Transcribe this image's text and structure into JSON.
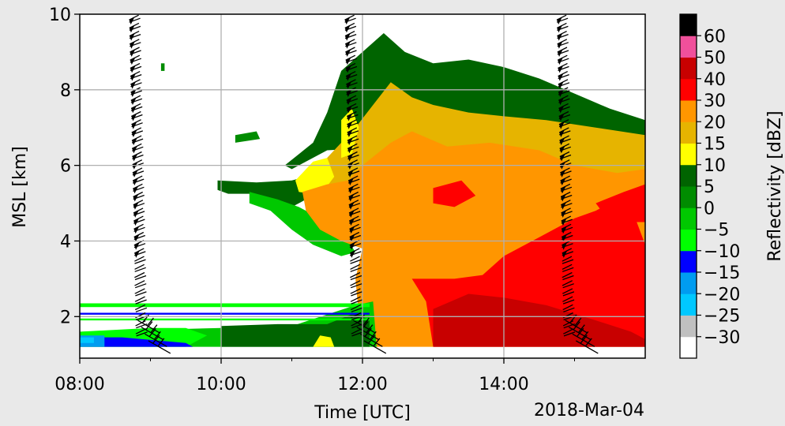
{
  "chart_data": {
    "type": "heatmap",
    "title": "",
    "xlabel": "Time [UTC]",
    "ylabel": "MSL [km]",
    "date_label": "2018-Mar-04",
    "x_ticks": [
      "08:00",
      "10:00",
      "12:00",
      "14:00"
    ],
    "x_tick_hours": [
      8,
      10,
      12,
      14
    ],
    "xlim_hours": [
      8.0,
      16.0
    ],
    "y_ticks": [
      2,
      4,
      6,
      8,
      10
    ],
    "ylim_km": [
      0.9,
      10.0
    ],
    "grid": true,
    "colorbar": {
      "label": "Reflectivity [dBZ]",
      "tick_values": [
        -30,
        -25,
        -20,
        -15,
        -10,
        -5,
        0,
        5,
        10,
        15,
        20,
        30,
        40,
        50,
        60
      ],
      "tick_labels": [
        "−30",
        "−25",
        "−20",
        "−15",
        "−10",
        "−5",
        "0",
        "5",
        "10",
        "15",
        "20",
        "30",
        "40",
        "50",
        "60"
      ],
      "colors": [
        "#ffffff",
        "#c0c0c0",
        "#00c8ff",
        "#009cf0",
        "#0000ff",
        "#00ff00",
        "#00c800",
        "#008c00",
        "#006400",
        "#ffff00",
        "#e6b400",
        "#ff9600",
        "#ff0000",
        "#c80000",
        "#f0509b",
        "#000000"
      ]
    },
    "wind_barb_profiles_hours": [
      8.7,
      11.75,
      14.75
    ],
    "colors": {
      "green_light": "#00ff00",
      "green": "#00c800",
      "green_mid": "#008c00",
      "green_dark": "#006400",
      "yellow": "#ffff00",
      "gold": "#e6b400",
      "orange": "#ff9600",
      "red": "#ff0000",
      "dark_red": "#c80000",
      "blue": "#0000ff",
      "light_blue": "#009cf0",
      "cyan": "#00c8ff"
    },
    "echo_regions": [
      {
        "c": "green_dark",
        "pts": [
          [
            9.95,
            5.6
          ],
          [
            10.5,
            5.55
          ],
          [
            11.0,
            5.6
          ],
          [
            11.3,
            5.75
          ],
          [
            11.2,
            5.1
          ],
          [
            11.0,
            4.9
          ],
          [
            10.7,
            5.1
          ],
          [
            10.4,
            5.25
          ],
          [
            10.1,
            5.25
          ],
          [
            9.95,
            5.35
          ]
        ]
      },
      {
        "c": "green_dark",
        "pts": [
          [
            10.9,
            6.0
          ],
          [
            11.3,
            6.6
          ],
          [
            11.5,
            7.4
          ],
          [
            11.7,
            8.5
          ],
          [
            12.0,
            9.0
          ],
          [
            12.3,
            9.5
          ],
          [
            12.6,
            9.0
          ],
          [
            13.0,
            8.7
          ],
          [
            13.5,
            8.8
          ],
          [
            14.0,
            8.6
          ],
          [
            14.5,
            8.3
          ],
          [
            15.0,
            7.9
          ],
          [
            15.5,
            7.5
          ],
          [
            16.0,
            7.2
          ],
          [
            16.0,
            6.3
          ],
          [
            14.0,
            6.3
          ],
          [
            12.5,
            6.5
          ],
          [
            11.5,
            6.4
          ],
          [
            11.0,
            5.9
          ]
        ]
      },
      {
        "c": "green",
        "pts": [
          [
            10.4,
            5.3
          ],
          [
            10.8,
            5.1
          ],
          [
            11.1,
            4.9
          ],
          [
            11.3,
            4.7
          ],
          [
            11.5,
            4.3
          ],
          [
            11.8,
            4.0
          ],
          [
            11.9,
            3.7
          ],
          [
            11.7,
            3.6
          ],
          [
            11.3,
            3.9
          ],
          [
            11.0,
            4.3
          ],
          [
            10.7,
            4.8
          ],
          [
            10.4,
            5.0
          ]
        ]
      },
      {
        "c": "gold",
        "pts": [
          [
            11.1,
            5.6
          ],
          [
            11.4,
            6.0
          ],
          [
            11.7,
            6.6
          ],
          [
            11.9,
            7.0
          ],
          [
            12.15,
            7.6
          ],
          [
            12.4,
            8.2
          ],
          [
            12.7,
            7.8
          ],
          [
            13.0,
            7.6
          ],
          [
            13.5,
            7.4
          ],
          [
            14.0,
            7.3
          ],
          [
            14.6,
            7.2
          ],
          [
            15.3,
            7.0
          ],
          [
            16.0,
            6.8
          ],
          [
            16.0,
            5.0
          ],
          [
            12.0,
            4.8
          ],
          [
            11.5,
            4.7
          ],
          [
            11.2,
            5.0
          ]
        ]
      },
      {
        "c": "yellow",
        "pts": [
          [
            11.05,
            5.6
          ],
          [
            11.3,
            6.1
          ],
          [
            11.5,
            6.2
          ],
          [
            11.6,
            5.7
          ],
          [
            11.4,
            5.2
          ],
          [
            11.1,
            5.3
          ]
        ]
      },
      {
        "c": "yellow",
        "pts": [
          [
            11.7,
            7.2
          ],
          [
            11.85,
            7.5
          ],
          [
            11.95,
            7.0
          ],
          [
            11.85,
            6.3
          ],
          [
            11.7,
            6.2
          ]
        ]
      },
      {
        "c": "orange",
        "pts": [
          [
            11.15,
            5.3
          ],
          [
            11.5,
            5.5
          ],
          [
            11.8,
            5.6
          ],
          [
            12.0,
            6.0
          ],
          [
            12.4,
            6.6
          ],
          [
            12.7,
            6.9
          ],
          [
            13.2,
            6.5
          ],
          [
            13.8,
            6.6
          ],
          [
            14.5,
            6.4
          ],
          [
            15.0,
            6.0
          ],
          [
            15.6,
            5.8
          ],
          [
            16.0,
            5.9
          ],
          [
            16.0,
            1.2
          ],
          [
            12.2,
            1.2
          ],
          [
            12.0,
            1.3
          ],
          [
            11.95,
            2.0
          ],
          [
            11.9,
            3.0
          ],
          [
            12.0,
            3.8
          ],
          [
            11.7,
            4.0
          ],
          [
            11.4,
            4.3
          ],
          [
            11.2,
            4.8
          ]
        ]
      },
      {
        "c": "red",
        "pts": [
          [
            12.7,
            3.0
          ],
          [
            12.9,
            2.4
          ],
          [
            13.0,
            1.2
          ],
          [
            16.0,
            1.2
          ],
          [
            16.0,
            3.9
          ],
          [
            15.8,
            4.9
          ],
          [
            15.6,
            5.1
          ],
          [
            15.3,
            4.8
          ],
          [
            15.0,
            4.6
          ],
          [
            14.5,
            4.1
          ],
          [
            14.0,
            3.6
          ],
          [
            13.7,
            3.1
          ],
          [
            13.3,
            3.0
          ]
        ]
      },
      {
        "c": "red",
        "pts": [
          [
            13.0,
            5.4
          ],
          [
            13.4,
            5.6
          ],
          [
            13.6,
            5.2
          ],
          [
            13.3,
            4.9
          ],
          [
            13.0,
            5.0
          ]
        ]
      },
      {
        "c": "red",
        "pts": [
          [
            15.3,
            5.0
          ],
          [
            15.7,
            5.3
          ],
          [
            16.0,
            5.5
          ],
          [
            16.0,
            4.5
          ],
          [
            15.5,
            4.5
          ]
        ]
      },
      {
        "c": "dark_red",
        "pts": [
          [
            13.0,
            2.2
          ],
          [
            13.5,
            2.6
          ],
          [
            14.0,
            2.5
          ],
          [
            14.6,
            2.3
          ],
          [
            15.3,
            1.9
          ],
          [
            15.8,
            1.6
          ],
          [
            16.0,
            1.4
          ],
          [
            16.0,
            1.2
          ],
          [
            13.0,
            1.2
          ]
        ]
      },
      {
        "c": "green",
        "pts": [
          [
            8.0,
            1.6
          ],
          [
            9.0,
            1.65
          ],
          [
            10.0,
            1.7
          ],
          [
            11.0,
            1.75
          ],
          [
            11.9,
            2.3
          ],
          [
            12.15,
            2.4
          ],
          [
            12.2,
            1.2
          ],
          [
            8.0,
            1.2
          ]
        ]
      },
      {
        "c": "green_dark",
        "pts": [
          [
            10.0,
            1.75
          ],
          [
            10.8,
            1.8
          ],
          [
            11.5,
            1.8
          ],
          [
            11.9,
            2.1
          ],
          [
            12.1,
            1.9
          ],
          [
            12.1,
            1.2
          ],
          [
            10.0,
            1.2
          ]
        ]
      },
      {
        "c": "green_light",
        "pts": [
          [
            8.0,
            1.6
          ],
          [
            9.0,
            1.7
          ],
          [
            9.5,
            1.7
          ],
          [
            9.8,
            1.5
          ],
          [
            9.5,
            1.2
          ],
          [
            8.0,
            1.2
          ]
        ]
      },
      {
        "c": "green_light",
        "pts": [
          [
            8.0,
            2.35
          ],
          [
            12.1,
            2.35
          ],
          [
            12.1,
            2.25
          ],
          [
            8.0,
            2.25
          ]
        ]
      },
      {
        "c": "green_light",
        "pts": [
          [
            8.0,
            1.95
          ],
          [
            12.1,
            1.95
          ],
          [
            12.1,
            1.9
          ],
          [
            8.0,
            1.9
          ]
        ]
      },
      {
        "c": "blue",
        "pts": [
          [
            8.0,
            1.45
          ],
          [
            8.6,
            1.45
          ],
          [
            9.2,
            1.35
          ],
          [
            9.5,
            1.3
          ],
          [
            9.6,
            1.2
          ],
          [
            8.0,
            1.2
          ]
        ]
      },
      {
        "c": "blue",
        "pts": [
          [
            8.0,
            2.1
          ],
          [
            12.1,
            2.1
          ],
          [
            12.1,
            2.05
          ],
          [
            8.0,
            2.05
          ]
        ]
      },
      {
        "c": "light_blue",
        "pts": [
          [
            8.0,
            1.5
          ],
          [
            8.35,
            1.5
          ],
          [
            8.35,
            1.2
          ],
          [
            8.0,
            1.2
          ]
        ]
      },
      {
        "c": "cyan",
        "pts": [
          [
            8.0,
            1.45
          ],
          [
            8.2,
            1.45
          ],
          [
            8.2,
            1.3
          ],
          [
            8.0,
            1.3
          ]
        ]
      },
      {
        "c": "yellow",
        "pts": [
          [
            11.3,
            1.2
          ],
          [
            11.4,
            1.5
          ],
          [
            11.55,
            1.45
          ],
          [
            11.6,
            1.2
          ]
        ]
      },
      {
        "c": "green_mid",
        "pts": [
          [
            9.15,
            8.7
          ],
          [
            9.2,
            8.7
          ],
          [
            9.2,
            8.5
          ],
          [
            9.15,
            8.5
          ]
        ]
      },
      {
        "c": "green_mid",
        "pts": [
          [
            10.2,
            6.8
          ],
          [
            10.5,
            6.9
          ],
          [
            10.55,
            6.7
          ],
          [
            10.2,
            6.6
          ]
        ]
      }
    ]
  }
}
